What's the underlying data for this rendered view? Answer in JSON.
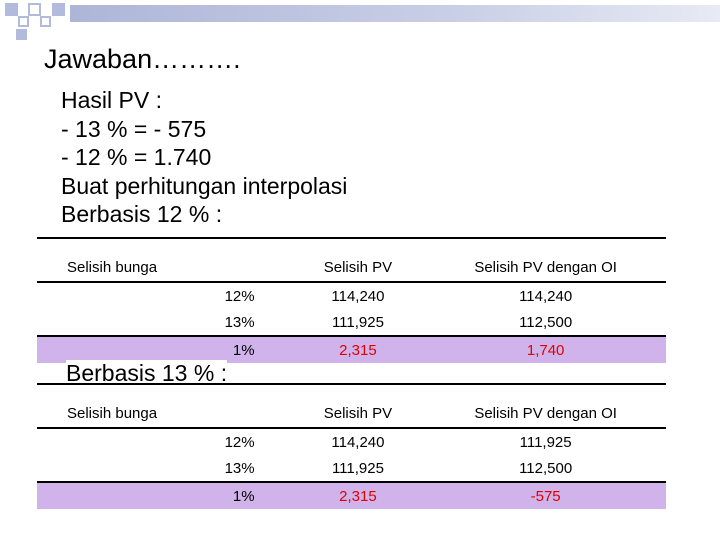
{
  "title": "Jawaban……….",
  "lines": [
    "Hasil PV :",
    "- 13 % = - 575",
    "- 12 % = 1.740",
    "Buat perhitungan interpolasi",
    "Berbasis 12 % :"
  ],
  "subtitle2": "Berbasis 13 % :",
  "table1": {
    "headers": [
      "Selisih bunga",
      "Selisih PV",
      "Selisih PV dengan OI"
    ],
    "rows": [
      [
        "12%",
        "114,240",
        "114,240"
      ],
      [
        "13%",
        "111,925",
        "112,500"
      ]
    ],
    "total": [
      "1%",
      "2,315",
      "1,740"
    ]
  },
  "table2": {
    "headers": [
      "Selisih bunga",
      "Selisih PV",
      "Selisih PV dengan OI"
    ],
    "rows": [
      [
        "12%",
        "114,240",
        "111,925"
      ],
      [
        "13%",
        "111,925",
        "112,500"
      ]
    ],
    "total": [
      "1%",
      "2,315",
      "-575"
    ]
  },
  "colors": {
    "accent": "#cfb3ea",
    "total_red": "#e00000",
    "deco_blue": "#aeb6d8"
  }
}
